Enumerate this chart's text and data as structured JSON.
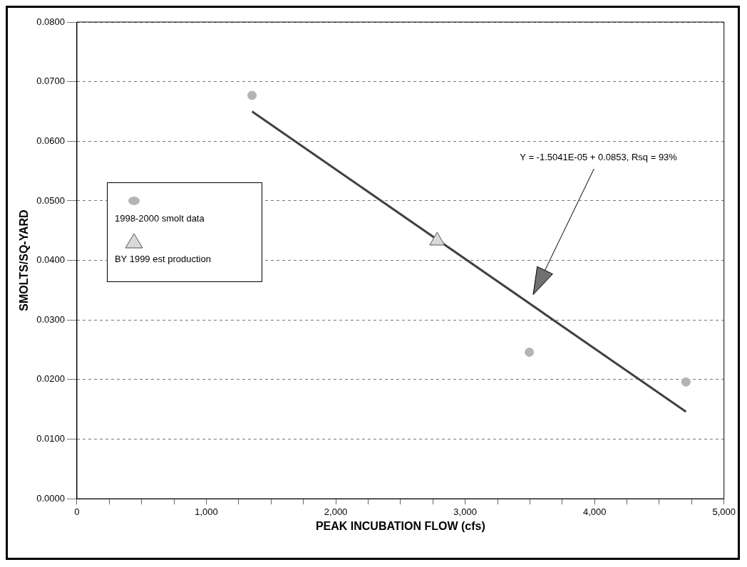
{
  "chart_data": {
    "type": "scatter",
    "xlabel": "PEAK INCUBATION FLOW (cfs)",
    "ylabel": "SMOLTS/SQ-YARD",
    "series": [
      {
        "name": "1998-2000 smolt data",
        "marker": "circle",
        "color": "#b4b4b4",
        "x": [
          1353,
          3496,
          4706
        ],
        "values": [
          0.0677,
          0.0246,
          0.0196
        ]
      },
      {
        "name": "BY 1999 est production",
        "marker": "triangle",
        "color": "#d9d9d9",
        "x": [
          2783
        ],
        "values": [
          0.0433
        ]
      },
      {
        "type": "line",
        "marker": "none",
        "color": "#404040",
        "x": [
          1353,
          4706
        ],
        "values": [
          0.065,
          0.0146
        ]
      }
    ],
    "xlim": [
      0,
      5000
    ],
    "xticks": [
      0,
      {
        "value": 250,
        "label": null
      },
      {
        "value": 500,
        "label": null
      },
      {
        "value": 750,
        "label": null
      },
      {
        "value": 1000,
        "label": "1,000"
      },
      {
        "value": 1250,
        "label": null
      },
      {
        "value": 1500,
        "label": null
      },
      {
        "value": 1750,
        "label": null
      },
      {
        "value": 2000,
        "label": "2,000"
      },
      {
        "value": 2250,
        "label": null
      },
      {
        "value": 2500,
        "label": null
      },
      {
        "value": 2750,
        "label": null
      },
      {
        "value": 3000,
        "label": "3,000"
      },
      {
        "value": 3250,
        "label": null
      },
      {
        "value": 3500,
        "label": null
      },
      {
        "value": 3750,
        "label": null
      },
      {
        "value": 4000,
        "label": "4,000"
      },
      {
        "value": 4250,
        "label": null
      },
      {
        "value": 4500,
        "label": null
      },
      {
        "value": 4750,
        "label": null
      },
      {
        "value": 5000,
        "label": "5,000"
      }
    ],
    "ylim": [
      0,
      0.08
    ],
    "yticks": [
      {
        "value": 0,
        "label": "0.0000"
      },
      {
        "value": 0.01,
        "label": "0.0100"
      },
      {
        "value": 0.02,
        "label": "0.0200"
      },
      {
        "value": 0.03,
        "label": "0.0300"
      },
      {
        "value": 0.04,
        "label": "0.0400"
      },
      {
        "value": 0.05,
        "label": "0.0500"
      },
      {
        "value": 0.06,
        "label": "0.0600"
      },
      {
        "value": 0.07,
        "label": "0.0700"
      },
      {
        "value": 0.08,
        "label": "0.0800"
      }
    ],
    "grid": "y",
    "legend": "left",
    "annotations": [
      "Y = -1.5041E-05 + 0.0853, Rsq = 93%"
    ]
  }
}
